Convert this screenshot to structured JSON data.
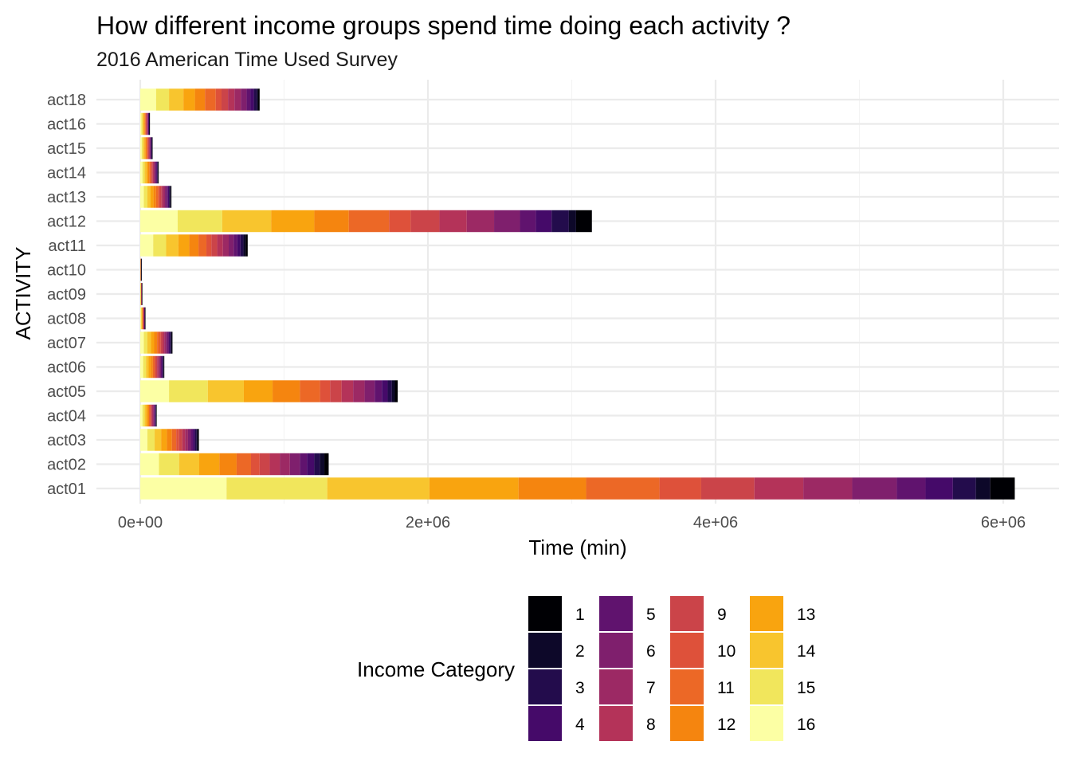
{
  "chart_data": {
    "type": "bar",
    "orientation": "horizontal",
    "stacked": true,
    "title": "How different income groups spend time doing each activity ?",
    "subtitle": "2016 American Time Used Survey",
    "xlabel": "Time (min)",
    "ylabel": "ACTIVITY",
    "xlim": [
      0,
      6200000
    ],
    "x_ticks": [
      0,
      2000000,
      4000000,
      6000000
    ],
    "x_tick_labels": [
      "0e+00",
      "2e+06",
      "4e+06",
      "6e+06"
    ],
    "categories": [
      "act01",
      "act02",
      "act03",
      "act04",
      "act05",
      "act06",
      "act07",
      "act08",
      "act09",
      "act10",
      "act11",
      "act12",
      "act13",
      "act14",
      "act15",
      "act16",
      "act18"
    ],
    "stack_order": [
      "16",
      "15",
      "14",
      "13",
      "12",
      "11",
      "10",
      "9",
      "8",
      "7",
      "6",
      "5",
      "4",
      "3",
      "2",
      "1"
    ],
    "series": [
      {
        "name": "16",
        "color": "#FCFFA4",
        "values": [
          600000,
          130000,
          50000,
          15000,
          200000,
          20000,
          25000,
          4000,
          1500,
          800,
          90000,
          260000,
          25000,
          15000,
          10000,
          8000,
          110000
        ]
      },
      {
        "name": "15",
        "color": "#F1E65C",
        "values": [
          700000,
          140000,
          50000,
          15000,
          270000,
          20000,
          25000,
          4000,
          1500,
          800,
          90000,
          310000,
          25000,
          15000,
          10000,
          8000,
          90000
        ]
      },
      {
        "name": "14",
        "color": "#F8C52E",
        "values": [
          710000,
          140000,
          45000,
          12000,
          250000,
          18000,
          25000,
          3500,
          1200,
          700,
          85000,
          340000,
          22000,
          13000,
          9000,
          7000,
          100000
        ]
      },
      {
        "name": "13",
        "color": "#F9A40F",
        "values": [
          620000,
          140000,
          40000,
          10000,
          200000,
          16000,
          22000,
          3000,
          1000,
          600,
          75000,
          300000,
          20000,
          12000,
          8000,
          6000,
          80000
        ]
      },
      {
        "name": "12",
        "color": "#F5850F",
        "values": [
          470000,
          120000,
          35000,
          9000,
          190000,
          14000,
          20000,
          2500,
          900,
          500,
          65000,
          240000,
          18000,
          10000,
          7000,
          5000,
          70000
        ]
      },
      {
        "name": "11",
        "color": "#EC6826",
        "values": [
          510000,
          100000,
          30000,
          8000,
          140000,
          12000,
          16000,
          2500,
          800,
          500,
          55000,
          280000,
          16000,
          9000,
          6000,
          4500,
          75000
        ]
      },
      {
        "name": "10",
        "color": "#DE513A",
        "values": [
          290000,
          60000,
          20000,
          5000,
          70000,
          8000,
          10000,
          1500,
          500,
          300,
          35000,
          150000,
          10000,
          6000,
          4000,
          3000,
          40000
        ]
      },
      {
        "name": "9",
        "color": "#CB4449",
        "values": [
          370000,
          70000,
          22000,
          6000,
          80000,
          9000,
          12000,
          2000,
          600,
          300,
          40000,
          200000,
          12000,
          7000,
          4500,
          3500,
          45000
        ]
      },
      {
        "name": "8",
        "color": "#B43359",
        "values": [
          340000,
          70000,
          20000,
          6000,
          80000,
          9000,
          12000,
          2000,
          600,
          300,
          40000,
          190000,
          12000,
          7000,
          4500,
          3500,
          45000
        ]
      },
      {
        "name": "7",
        "color": "#9C2964",
        "values": [
          340000,
          70000,
          20000,
          6000,
          80000,
          9000,
          12000,
          2000,
          600,
          300,
          40000,
          190000,
          12000,
          7000,
          4500,
          3500,
          45000
        ]
      },
      {
        "name": "6",
        "color": "#7F1F6D",
        "values": [
          310000,
          70000,
          20000,
          6000,
          70000,
          9000,
          12000,
          2000,
          600,
          300,
          35000,
          180000,
          12000,
          7000,
          4500,
          3500,
          40000
        ]
      },
      {
        "name": "5",
        "color": "#60136E",
        "values": [
          200000,
          50000,
          14000,
          4000,
          50000,
          6000,
          8000,
          1200,
          400,
          200,
          25000,
          110000,
          8000,
          5000,
          3000,
          2500,
          25000
        ]
      },
      {
        "name": "4",
        "color": "#450A69",
        "values": [
          190000,
          50000,
          14000,
          4000,
          40000,
          6000,
          8000,
          1200,
          400,
          200,
          22000,
          110000,
          8000,
          5000,
          3000,
          2500,
          25000
        ]
      },
      {
        "name": "3",
        "color": "#230C4C",
        "values": [
          160000,
          40000,
          12000,
          3000,
          30000,
          5000,
          7000,
          1000,
          300,
          200,
          20000,
          120000,
          7000,
          4000,
          2500,
          2000,
          20000
        ]
      },
      {
        "name": "2",
        "color": "#0D0829",
        "values": [
          100000,
          30000,
          8000,
          2000,
          20000,
          3000,
          5000,
          700,
          200,
          100,
          15000,
          50000,
          5000,
          3000,
          2000,
          1500,
          10000
        ]
      },
      {
        "name": "1",
        "color": "#000004",
        "values": [
          170000,
          30000,
          8000,
          2000,
          20000,
          3000,
          5000,
          700,
          200,
          100,
          15000,
          110000,
          5000,
          3000,
          2000,
          1500,
          10000
        ]
      }
    ],
    "legend": {
      "title": "Income Category",
      "position": "bottom",
      "layout": "4 columns x 4 rows",
      "items": [
        "1",
        "2",
        "3",
        "4",
        "5",
        "6",
        "7",
        "8",
        "9",
        "10",
        "11",
        "12",
        "13",
        "14",
        "15",
        "16"
      ]
    },
    "grid": true,
    "theme": "minimal"
  }
}
